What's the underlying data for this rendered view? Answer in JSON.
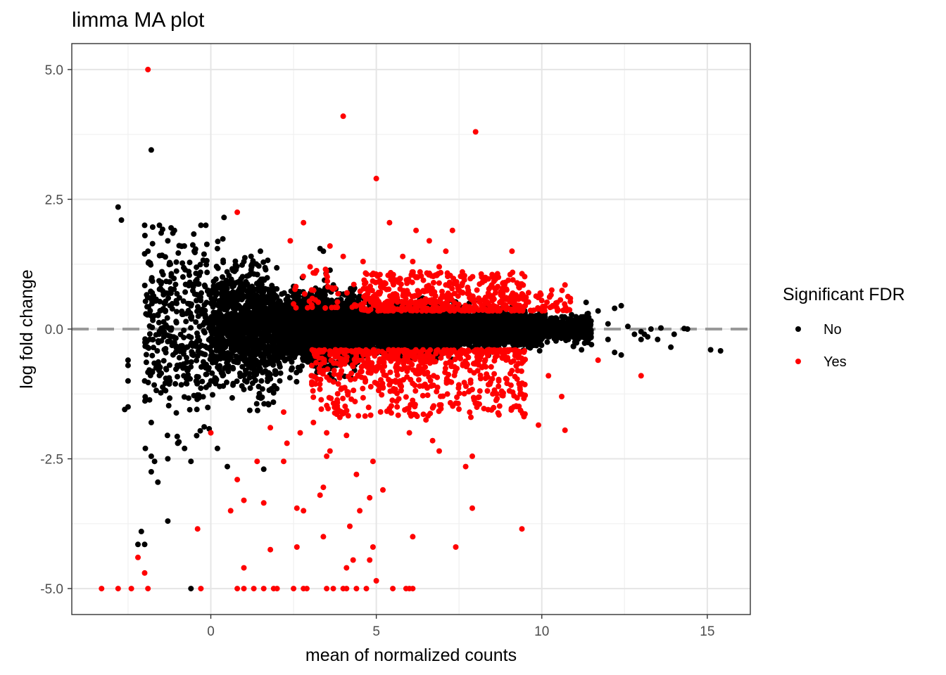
{
  "chart_data": {
    "type": "scatter",
    "title": "limma MA plot",
    "xlabel": "mean of normalized counts",
    "ylabel": "log fold change",
    "xlim": [
      -4.2,
      16.3
    ],
    "ylim": [
      -5.5,
      5.5
    ],
    "x_ticks": [
      0,
      5,
      10,
      15
    ],
    "x_tick_labels": [
      "0",
      "5",
      "10",
      "15"
    ],
    "y_ticks": [
      -5,
      -2.5,
      0,
      2.5,
      5
    ],
    "y_tick_labels": [
      "-5.0",
      "-2.5",
      "0.0",
      "2.5",
      "5.0"
    ],
    "grid": true,
    "reference_line": {
      "y": 0,
      "style": "dashed",
      "color": "#999999"
    },
    "legend": {
      "title": "Significant FDR",
      "position": "right",
      "entries": [
        {
          "label": "No",
          "color": "#000000"
        },
        {
          "label": "Yes",
          "color": "#ff0000"
        }
      ]
    },
    "series": [
      {
        "name": "No",
        "color": "#000000",
        "points": [
          [
            -2.8,
            2.35
          ],
          [
            -2.7,
            2.1
          ],
          [
            -1.8,
            3.45
          ],
          [
            0.4,
            2.15
          ],
          [
            -1.2,
            1.95
          ],
          [
            -1.1,
            1.9
          ],
          [
            -1.5,
            1.85
          ],
          [
            -1.9,
            1.5
          ],
          [
            -2.0,
            1.45
          ],
          [
            -1.3,
            1.7
          ],
          [
            -0.8,
            1.6
          ],
          [
            -0.5,
            1.5
          ],
          [
            0.2,
            1.55
          ],
          [
            1.0,
            1.3
          ],
          [
            1.5,
            1.5
          ],
          [
            3.4,
            1.5
          ],
          [
            3.3,
            1.55
          ],
          [
            -2.5,
            -0.6
          ],
          [
            -2.5,
            -0.7
          ],
          [
            -2.5,
            -1.0
          ],
          [
            -2.5,
            -1.5
          ],
          [
            -2.6,
            -1.55
          ],
          [
            -2.0,
            -1.0
          ],
          [
            -1.8,
            -1.8
          ],
          [
            -1.8,
            -2.45
          ],
          [
            -1.7,
            -2.55
          ],
          [
            -1.8,
            -2.75
          ],
          [
            -1.6,
            -2.95
          ],
          [
            -1.3,
            -2.5
          ],
          [
            -1.0,
            -2.2
          ],
          [
            -0.6,
            -2.55
          ],
          [
            0.2,
            -2.3
          ],
          [
            0.5,
            -2.65
          ],
          [
            1.6,
            -2.7
          ],
          [
            -2.1,
            -3.9
          ],
          [
            -2.2,
            -4.15
          ],
          [
            -2.0,
            -4.15
          ],
          [
            -1.3,
            -3.7
          ],
          [
            -0.6,
            -5.0
          ],
          [
            12.4,
            0.45
          ],
          [
            12.2,
            0.4
          ],
          [
            11.7,
            0.35
          ],
          [
            11.4,
            0.3
          ],
          [
            12.0,
            0.1
          ],
          [
            12.6,
            0.05
          ],
          [
            13.0,
            -0.05
          ],
          [
            12.8,
            -0.1
          ],
          [
            13.3,
            0.0
          ],
          [
            13.6,
            0.02
          ],
          [
            14.0,
            -0.1
          ],
          [
            14.4,
            0.0
          ],
          [
            13.9,
            -0.35
          ],
          [
            13.5,
            -0.2
          ],
          [
            13.1,
            -0.1
          ],
          [
            12.0,
            -0.2
          ],
          [
            12.2,
            -0.45
          ],
          [
            12.4,
            -0.5
          ],
          [
            11.2,
            -0.4
          ],
          [
            11.5,
            -0.3
          ],
          [
            11.0,
            -0.25
          ],
          [
            10.8,
            -0.2
          ],
          [
            13.0,
            -0.2
          ],
          [
            14.3,
            0.01
          ],
          [
            15.4,
            -0.42
          ],
          [
            15.1,
            -0.4
          ],
          [
            13.2,
            -0.15
          ]
        ],
        "cloud_bands": [
          {
            "x_range": [
              -2.0,
              0.0
            ],
            "sd": 0.85,
            "count": 380
          },
          {
            "x_range": [
              0.0,
              2.0
            ],
            "sd": 0.55,
            "count": 1000
          },
          {
            "x_range": [
              2.0,
              4.5
            ],
            "sd": 0.3,
            "count": 2600
          },
          {
            "x_range": [
              4.5,
              7.5
            ],
            "sd": 0.2,
            "count": 2400
          },
          {
            "x_range": [
              7.5,
              10.0
            ],
            "sd": 0.15,
            "count": 1400
          },
          {
            "x_range": [
              10.0,
              11.5
            ],
            "sd": 0.12,
            "count": 360
          }
        ]
      },
      {
        "name": "Yes",
        "color": "#ff0000",
        "points": [
          [
            -1.9,
            5.0
          ],
          [
            4.0,
            4.1
          ],
          [
            8.0,
            3.8
          ],
          [
            5.0,
            2.9
          ],
          [
            0.8,
            2.25
          ],
          [
            2.8,
            2.05
          ],
          [
            5.4,
            2.05
          ],
          [
            6.2,
            1.9
          ],
          [
            7.3,
            1.9
          ],
          [
            9.1,
            1.5
          ],
          [
            7.1,
            1.5
          ],
          [
            6.6,
            1.7
          ],
          [
            2.4,
            1.7
          ],
          [
            3.6,
            1.6
          ],
          [
            4.0,
            1.4
          ],
          [
            5.8,
            1.4
          ],
          [
            6.1,
            1.3
          ],
          [
            6.9,
            1.2
          ],
          [
            4.6,
            1.3
          ],
          [
            3.0,
            1.2
          ],
          [
            7.6,
            1.1
          ],
          [
            8.5,
            1.05
          ],
          [
            8.9,
            0.9
          ],
          [
            10.3,
            0.75
          ],
          [
            10.7,
            0.85
          ],
          [
            9.6,
            0.7
          ],
          [
            9.2,
            0.6
          ],
          [
            10.0,
            0.55
          ],
          [
            9.5,
            0.45
          ],
          [
            13.0,
            -0.9
          ],
          [
            11.7,
            -0.6
          ],
          [
            9.9,
            -1.85
          ],
          [
            10.7,
            -1.95
          ],
          [
            10.6,
            -1.3
          ],
          [
            10.2,
            -0.9
          ],
          [
            9.1,
            -0.8
          ],
          [
            8.7,
            -1.0
          ],
          [
            9.4,
            -3.85
          ],
          [
            7.9,
            -3.45
          ],
          [
            8.3,
            -0.95
          ],
          [
            6.1,
            -4.0
          ],
          [
            7.4,
            -4.2
          ],
          [
            7.7,
            -2.65
          ],
          [
            7.9,
            -2.45
          ],
          [
            6.9,
            -2.35
          ],
          [
            6.7,
            -2.15
          ],
          [
            6.0,
            -2.0
          ],
          [
            6.5,
            -1.75
          ],
          [
            1.0,
            -3.3
          ],
          [
            0.6,
            -3.5
          ],
          [
            0.8,
            -2.9
          ],
          [
            1.4,
            -2.55
          ],
          [
            1.6,
            -3.35
          ],
          [
            1.8,
            -4.25
          ],
          [
            2.6,
            -4.2
          ],
          [
            2.6,
            -3.45
          ],
          [
            2.8,
            -3.5
          ],
          [
            3.4,
            -3.05
          ],
          [
            3.3,
            -3.2
          ],
          [
            3.5,
            -2.45
          ],
          [
            3.6,
            -2.35
          ],
          [
            2.2,
            -2.55
          ],
          [
            2.3,
            -2.2
          ],
          [
            2.7,
            -2.0
          ],
          [
            3.1,
            -1.8
          ],
          [
            3.5,
            -2.0
          ],
          [
            3.8,
            -1.5
          ],
          [
            4.1,
            -2.05
          ],
          [
            4.4,
            -2.8
          ],
          [
            4.5,
            -3.5
          ],
          [
            4.2,
            -3.8
          ],
          [
            4.9,
            -2.55
          ],
          [
            4.8,
            -3.25
          ],
          [
            5.2,
            -3.1
          ],
          [
            4.9,
            -4.2
          ],
          [
            4.8,
            -4.45
          ],
          [
            4.3,
            -4.45
          ],
          [
            4.1,
            -4.6
          ],
          [
            5.0,
            -4.85
          ],
          [
            3.4,
            -4.0
          ],
          [
            1.0,
            -4.6
          ],
          [
            -0.4,
            -3.85
          ],
          [
            -2.2,
            -4.4
          ],
          [
            -2.0,
            -4.7
          ],
          [
            -1.9,
            -5.0
          ],
          [
            -2.4,
            -5.0
          ],
          [
            -2.8,
            -5.0
          ],
          [
            -3.3,
            -5.0
          ],
          [
            -0.3,
            -5.0
          ],
          [
            0.8,
            -5.0
          ],
          [
            1.0,
            -5.0
          ],
          [
            1.3,
            -5.0
          ],
          [
            1.6,
            -5.0
          ],
          [
            1.9,
            -5.0
          ],
          [
            2.0,
            -5.0
          ],
          [
            2.5,
            -5.0
          ],
          [
            2.8,
            -5.0
          ],
          [
            2.9,
            -5.0
          ],
          [
            3.5,
            -5.0
          ],
          [
            3.7,
            -5.0
          ],
          [
            4.0,
            -5.0
          ],
          [
            4.1,
            -5.0
          ],
          [
            4.4,
            -5.0
          ],
          [
            4.7,
            -5.0
          ],
          [
            5.5,
            -5.0
          ],
          [
            5.9,
            -5.0
          ],
          [
            6.0,
            -5.0
          ],
          [
            6.1,
            -5.0
          ],
          [
            0.0,
            -2.0
          ],
          [
            2.2,
            -1.6
          ],
          [
            1.8,
            -1.9
          ],
          [
            3.9,
            -1.7
          ]
        ],
        "cloud_bands": [
          {
            "x_range": [
              4.5,
              9.5
            ],
            "y_range": [
              0.35,
              1.1
            ],
            "count": 480
          },
          {
            "x_range": [
              3.0,
              9.5
            ],
            "y_range": [
              -1.7,
              -0.4
            ],
            "count": 620
          },
          {
            "x_range": [
              9.0,
              10.9
            ],
            "y_range": [
              0.35,
              0.75
            ],
            "count": 60
          },
          {
            "x_range": [
              2.5,
              4.5
            ],
            "y_range": [
              0.4,
              1.2
            ],
            "count": 40
          }
        ]
      }
    ]
  }
}
